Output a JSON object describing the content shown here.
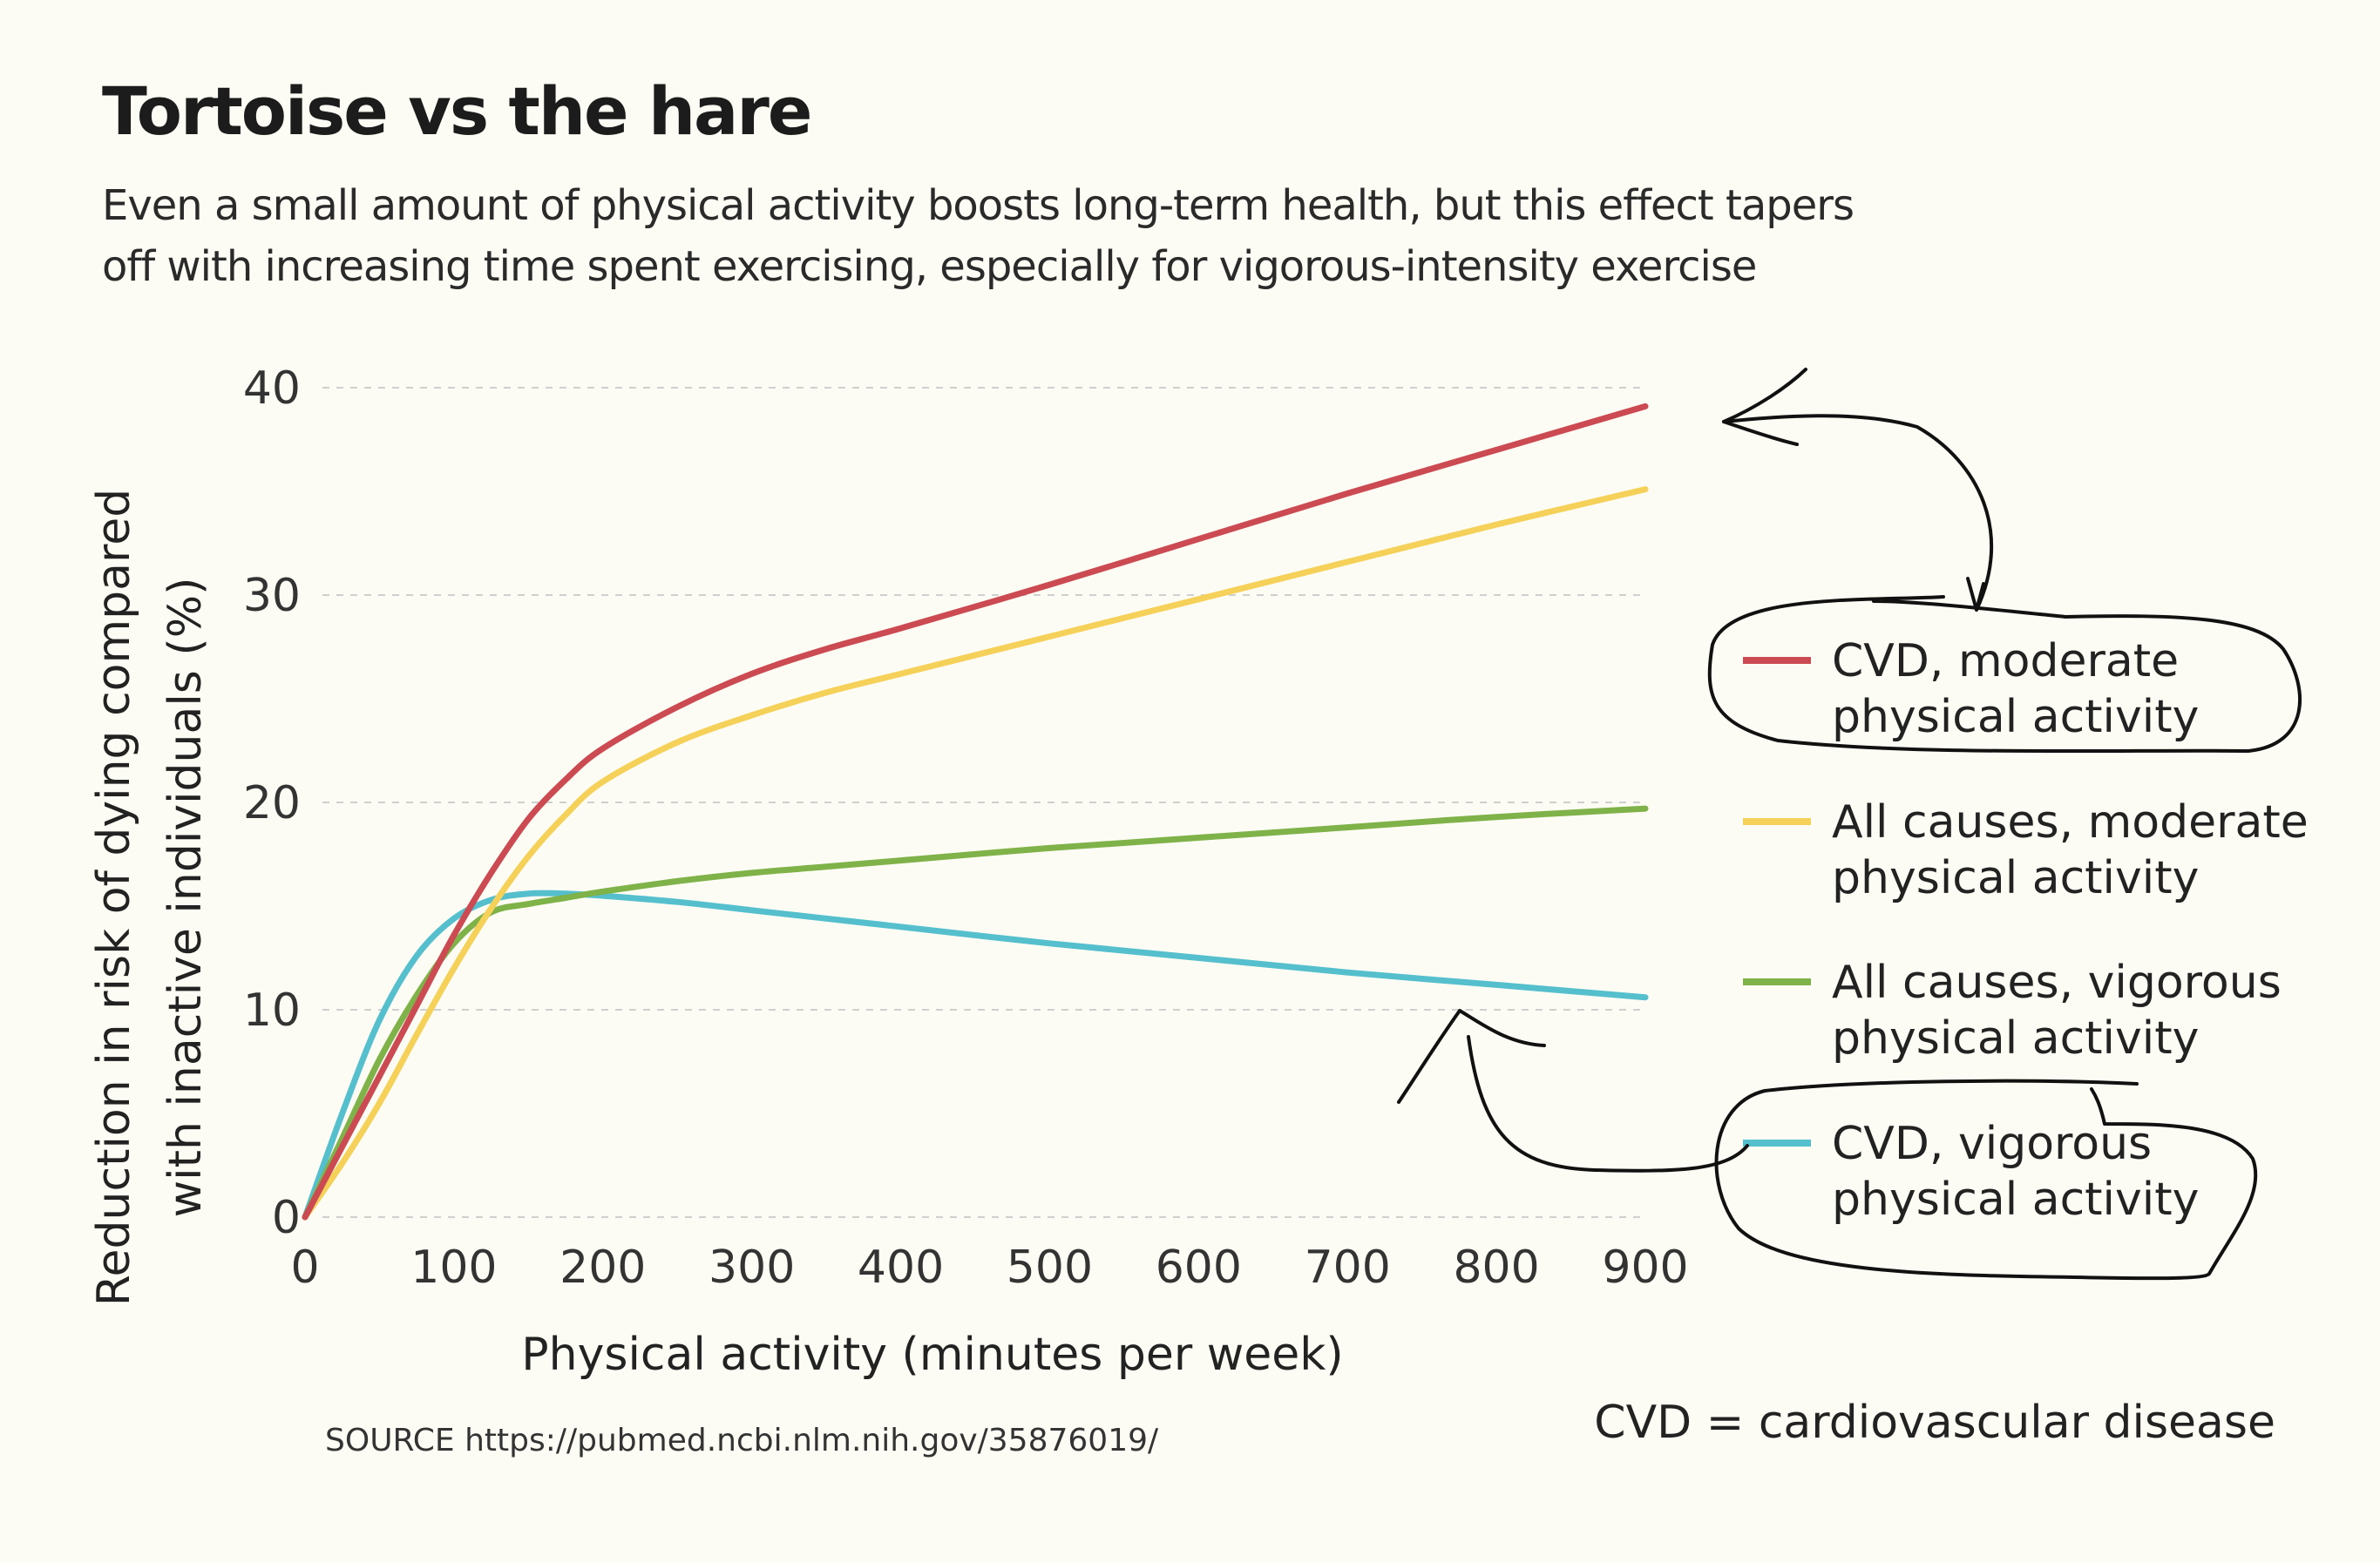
{
  "chart_data": {
    "type": "line",
    "title": "Tortoise vs the hare",
    "subtitle_lines": [
      "Even a small amount of physical activity boosts long-term health, but this effect tapers",
      "off with increasing time spent exercising, especially for vigorous-intensity exercise"
    ],
    "xlabel": "Physical activity (minutes per week)",
    "ylabel_lines": [
      "Reduction in risk of dying compared",
      "with inactive individuals (%)"
    ],
    "xlim": [
      0,
      900
    ],
    "ylim": [
      0,
      40
    ],
    "x_ticks": [
      0,
      100,
      200,
      300,
      400,
      500,
      600,
      700,
      800,
      900
    ],
    "y_ticks": [
      0,
      10,
      20,
      30,
      40
    ],
    "grid": "horizontal-dashed",
    "legend_position": "right",
    "x": [
      0,
      25,
      50,
      75,
      100,
      125,
      150,
      175,
      200,
      250,
      300,
      350,
      400,
      500,
      600,
      700,
      800,
      900
    ],
    "series": [
      {
        "name": "CVD, moderate physical activity",
        "label_lines": [
          "CVD, moderate",
          "physical activity"
        ],
        "color": "#cc4a52",
        "values": [
          0,
          3.4,
          6.8,
          10.2,
          13.6,
          16.6,
          19.2,
          21.1,
          22.6,
          24.6,
          26.2,
          27.4,
          28.4,
          30.5,
          32.7,
          34.9,
          37.0,
          39.1
        ]
      },
      {
        "name": "All causes, moderate physical activity",
        "label_lines": [
          "All causes, moderate",
          "physical activity"
        ],
        "color": "#f5d159",
        "values": [
          0,
          2.6,
          5.5,
          8.8,
          12.0,
          14.9,
          17.4,
          19.4,
          21.0,
          22.9,
          24.2,
          25.3,
          26.2,
          28.0,
          29.8,
          31.6,
          33.4,
          35.1
        ]
      },
      {
        "name": "All causes, vigorous physical activity",
        "label_lines": [
          "All causes, vigorous",
          "physical activity"
        ],
        "color": "#80b24a",
        "values": [
          0,
          3.8,
          7.6,
          10.7,
          13.2,
          14.7,
          15.1,
          15.4,
          15.7,
          16.2,
          16.6,
          16.9,
          17.2,
          17.8,
          18.3,
          18.8,
          19.3,
          19.7
        ]
      },
      {
        "name": "CVD, vigorous physical activity",
        "label_lines": [
          "CVD, vigorous",
          "physical activity"
        ],
        "color": "#55bfcd",
        "values": [
          0,
          5.0,
          9.5,
          12.6,
          14.4,
          15.3,
          15.6,
          15.6,
          15.5,
          15.2,
          14.8,
          14.4,
          14.0,
          13.2,
          12.5,
          11.8,
          11.2,
          10.6
        ]
      }
    ],
    "source": "SOURCE https://pubmed.ncbi.nlm.nih.gov/35876019/",
    "footnote": "CVD = cardiovascular disease"
  }
}
